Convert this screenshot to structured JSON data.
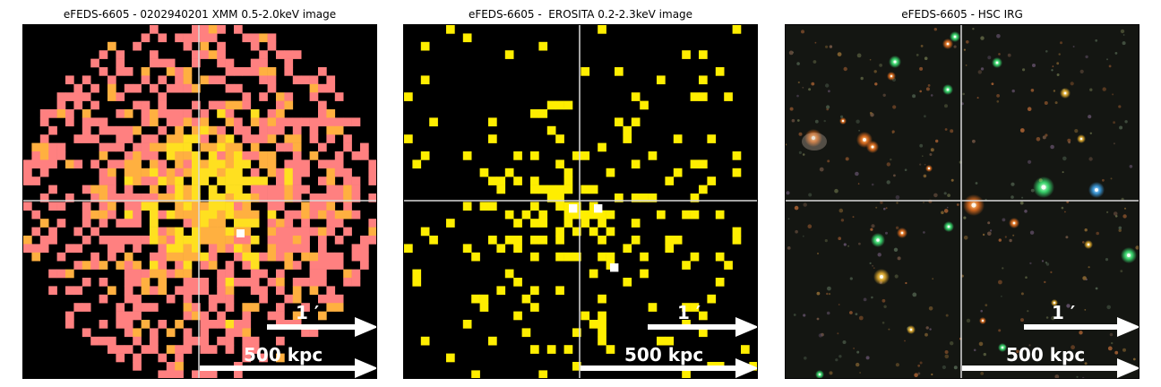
{
  "panels": [
    {
      "title": "eFEDS-6605 - 0202940201 XMM 0.5-2.0keV image",
      "kind": "xmm",
      "arcmin_label": "1 ′",
      "kpc_label": "500 kpc"
    },
    {
      "title": "eFEDS-6605 -  EROSITA 0.2-2.3keV image",
      "kind": "erosita",
      "arcmin_label": "1 ′",
      "kpc_label": "500 kpc"
    },
    {
      "title": "eFEDS-6605 - HSC IRG",
      "kind": "hsc",
      "arcmin_label": "1 ′",
      "kpc_label": "500 kpc"
    }
  ],
  "colors": {
    "background": "#000000",
    "crosshair": "#d9d9d9",
    "xmm_low": "#ff8080",
    "xmm_mid": "#ffb040",
    "xmm_high": "#ffe020",
    "erosita_count": "#ffee00",
    "erosita_peak": "#ffffff",
    "scalebar": "#ffffff"
  }
}
